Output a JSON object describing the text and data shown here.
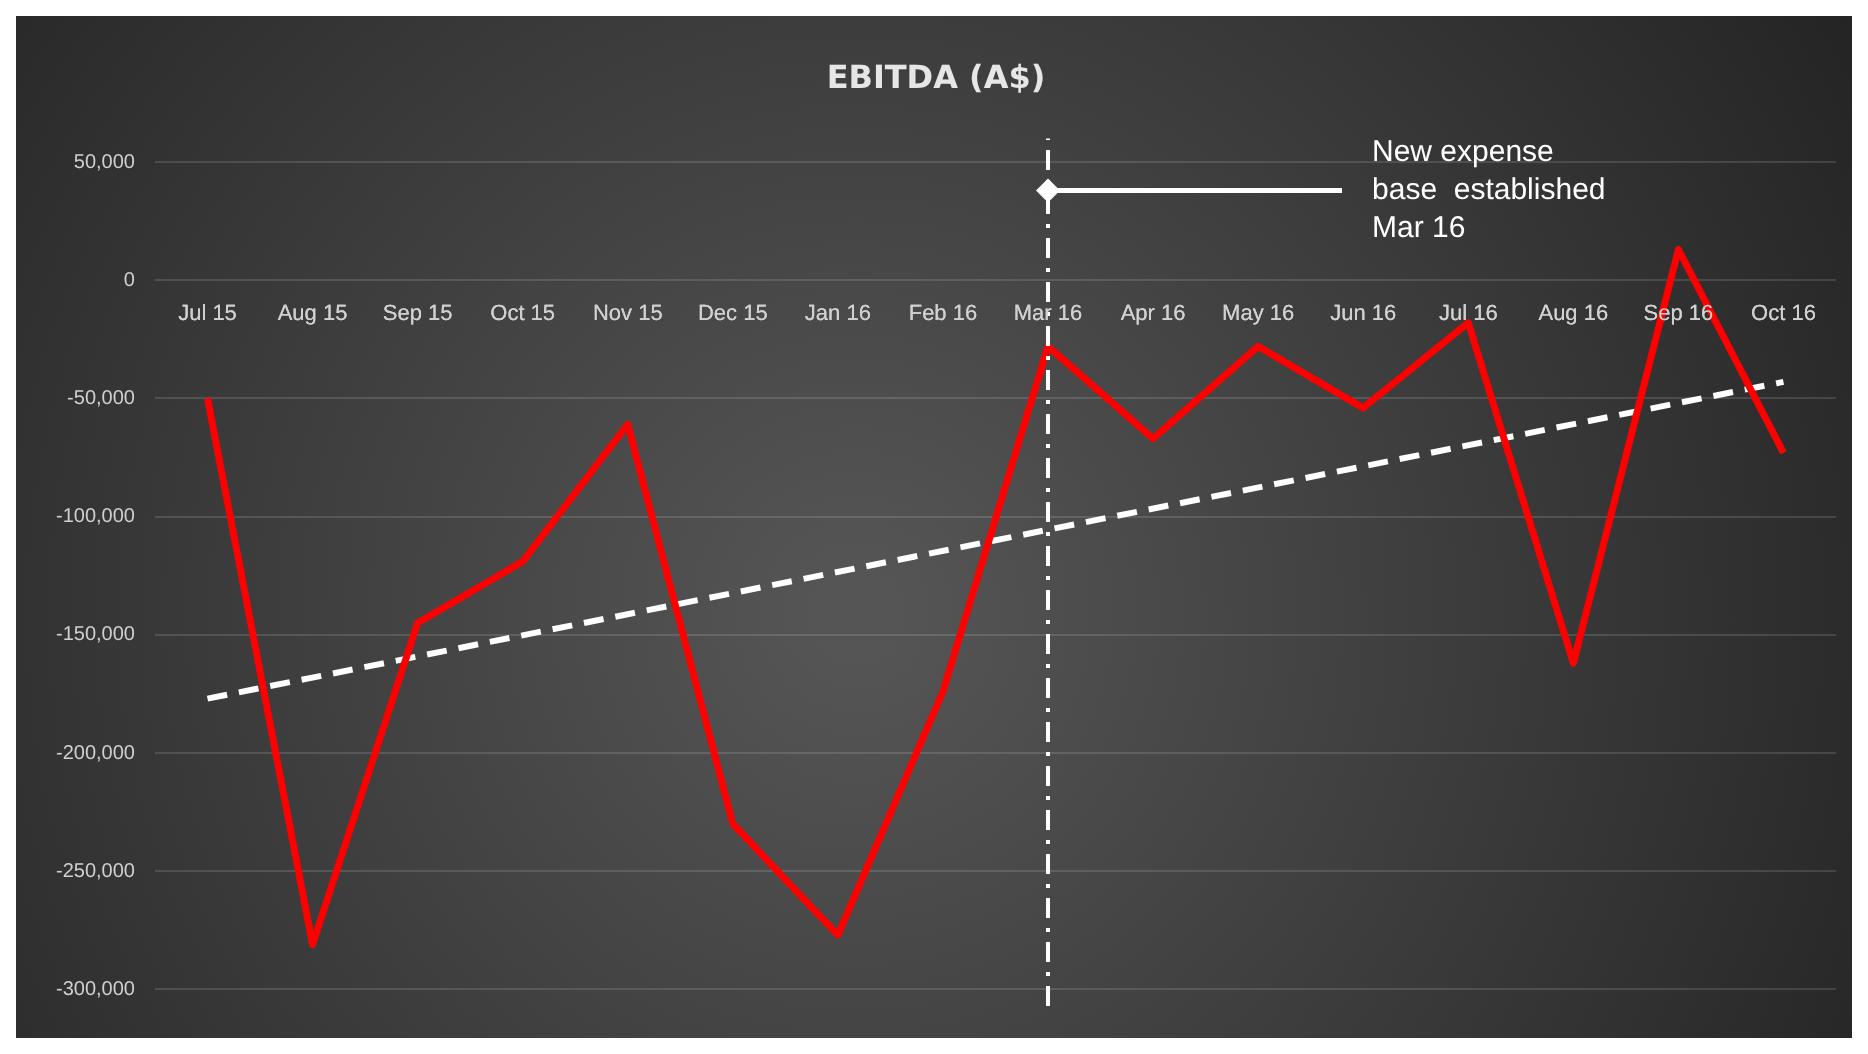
{
  "chart_data": {
    "type": "line",
    "title": "EBITDA (A$)",
    "categories": [
      "Jul 15",
      "Aug 15",
      "Sep 15",
      "Oct 15",
      "Nov 15",
      "Dec 15",
      "Jan 16",
      "Feb 16",
      "Mar 16",
      "Apr 16",
      "May 16",
      "Jun 16",
      "Jul 16",
      "Aug 16",
      "Sep 16",
      "Oct 16"
    ],
    "series": [
      {
        "color": "#ff0000",
        "values": [
          -50000,
          -281000,
          -145000,
          -119000,
          -61000,
          -230000,
          -277000,
          -174000,
          -28000,
          -67000,
          -28000,
          -54000,
          -18000,
          -162000,
          13000,
          -73000
        ]
      },
      {
        "type": "line",
        "color": "#ffffff",
        "line_style": "dashed",
        "x": [
          "Jul 15",
          "Oct 16"
        ],
        "values": [
          -177000,
          -43000
        ]
      }
    ],
    "ylim": [
      -307000,
      60000
    ],
    "yticks": [
      {
        "value": 50000,
        "label": "50,000"
      },
      0,
      {
        "value": -50000,
        "label": "-50,000"
      },
      {
        "value": -100000,
        "label": "-100,000"
      },
      {
        "value": -150000,
        "label": "-150,000"
      },
      {
        "value": -200000,
        "label": "-200,000"
      },
      {
        "value": -250000,
        "label": "-250,000"
      },
      {
        "value": -300000,
        "label": "-300,000"
      }
    ],
    "grid": "y",
    "marker": "none",
    "line_style": "solid",
    "ref_lines": [
      {
        "axis": "x",
        "value": "Mar 16",
        "color": "#ffffff",
        "line_style": "dashdot"
      }
    ],
    "annotations": [
      {
        "text": "New expense base  established Mar 16",
        "x": "Mar 16",
        "y": 38000
      }
    ]
  }
}
